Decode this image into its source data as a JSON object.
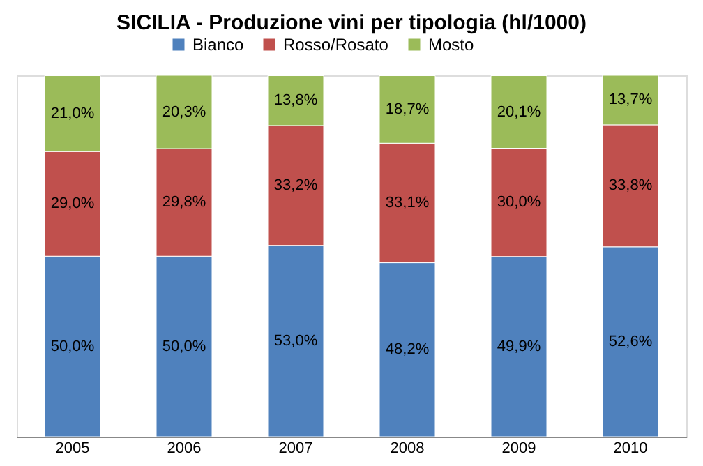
{
  "chart_data": {
    "type": "bar",
    "title": "SICILIA - Produzione vini per tipologia (hl/1000)",
    "categories": [
      "2005",
      "2006",
      "2007",
      "2008",
      "2009",
      "2010"
    ],
    "stacked": true,
    "ylim": [
      0,
      100.1
    ],
    "legend": "top",
    "series": [
      {
        "name": "Bianco",
        "color": "#4f81bd",
        "values": [
          50.0,
          50.0,
          53.0,
          48.2,
          49.9,
          52.6
        ],
        "value_labels": [
          "50,0%",
          "50,0%",
          "53,0%",
          "48,2%",
          "49,9%",
          "52,6%"
        ]
      },
      {
        "name": "Rosso/Rosato",
        "color": "#c0504d",
        "values": [
          29.0,
          29.8,
          33.2,
          33.1,
          30.0,
          33.8
        ],
        "value_labels": [
          "29,0%",
          "29,8%",
          "33,2%",
          "33,1%",
          "30,0%",
          "33,8%"
        ]
      },
      {
        "name": "Mosto",
        "color": "#9bbb59",
        "values": [
          21.0,
          20.3,
          13.8,
          18.7,
          20.1,
          13.7
        ],
        "value_labels": [
          "21,0%",
          "20,3%",
          "13,8%",
          "18,7%",
          "20,1%",
          "13,7%"
        ]
      }
    ]
  }
}
